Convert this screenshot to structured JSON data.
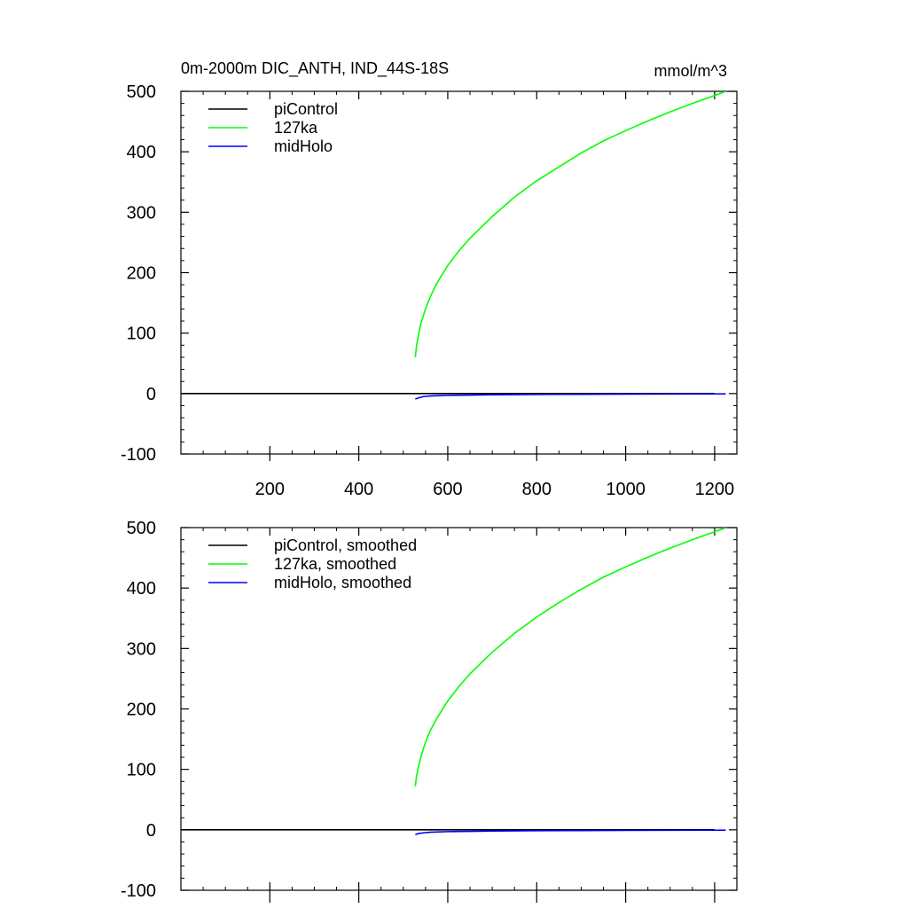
{
  "header": {
    "title": "0m-2000m DIC_ANTH, IND_44S-18S",
    "units": "mmol/m^3"
  },
  "colors": {
    "piControl": "#000000",
    "127ka": "#00ff00",
    "midHolo": "#0000ff"
  },
  "chart_data": [
    {
      "type": "line",
      "title": "0m-2000m DIC_ANTH, IND_44S-18S",
      "units_label": "mmol/m^3",
      "xlabel": "",
      "ylabel": "",
      "xlim": [
        0,
        1250
      ],
      "ylim": [
        -100,
        500
      ],
      "x_ticks": [
        200,
        400,
        600,
        800,
        1000,
        1200
      ],
      "x_tick_labels": [
        "200",
        "400",
        "600",
        "800",
        "1000",
        "1200"
      ],
      "y_ticks": [
        -100,
        0,
        100,
        200,
        300,
        400,
        500
      ],
      "y_tick_labels": [
        "-100",
        "0",
        "100",
        "200",
        "300",
        "400",
        "500"
      ],
      "grid": false,
      "legend_position": "top-left",
      "series": [
        {
          "name": "piControl",
          "color": "#000000",
          "x": [
            0,
            200,
            400,
            600,
            800,
            1000,
            1200
          ],
          "y": [
            0,
            0,
            0,
            0,
            0,
            0,
            0
          ]
        },
        {
          "name": "127ka",
          "color": "#00ff00",
          "x": [
            527,
            530,
            535,
            540,
            550,
            560,
            575,
            600,
            625,
            650,
            700,
            750,
            800,
            850,
            900,
            950,
            1000,
            1050,
            1100,
            1150,
            1200,
            1225
          ],
          "y": [
            60,
            80,
            100,
            117,
            140,
            159,
            182,
            212,
            236,
            257,
            293,
            325,
            352,
            375,
            398,
            418,
            435,
            451,
            466,
            480,
            493,
            500
          ]
        },
        {
          "name": "midHolo",
          "color": "#0000ff",
          "x": [
            527,
            535,
            545,
            560,
            580,
            600,
            650,
            700,
            800,
            900,
            1000,
            1100,
            1200,
            1225
          ],
          "y": [
            -9,
            -7,
            -5,
            -4,
            -3.5,
            -3,
            -2.5,
            -2,
            -1.5,
            -1.2,
            -1,
            -0.8,
            -0.6,
            -0.5
          ]
        }
      ]
    },
    {
      "type": "line",
      "title": "",
      "xlabel": "",
      "ylabel": "",
      "xlim": [
        0,
        1250
      ],
      "ylim": [
        -100,
        500
      ],
      "x_ticks": [
        200,
        400,
        600,
        800,
        1000,
        1200
      ],
      "x_tick_labels": [],
      "y_ticks": [
        -100,
        0,
        100,
        200,
        300,
        400,
        500
      ],
      "y_tick_labels": [
        "-100",
        "0",
        "100",
        "200",
        "300",
        "400",
        "500"
      ],
      "grid": false,
      "legend_position": "top-left",
      "series": [
        {
          "name": "piControl, smoothed",
          "color": "#000000",
          "x": [
            0,
            200,
            400,
            600,
            800,
            1000,
            1200
          ],
          "y": [
            0,
            0,
            0,
            0,
            0,
            0,
            0
          ]
        },
        {
          "name": "127ka, smoothed",
          "color": "#00ff00",
          "x": [
            527,
            530,
            535,
            540,
            550,
            560,
            575,
            600,
            625,
            650,
            700,
            750,
            800,
            850,
            900,
            950,
            1000,
            1050,
            1100,
            1150,
            1200,
            1225
          ],
          "y": [
            72,
            90,
            107,
            122,
            145,
            163,
            184,
            213,
            237,
            258,
            294,
            325,
            352,
            376,
            398,
            418,
            435,
            451,
            466,
            480,
            493,
            500
          ]
        },
        {
          "name": "midHolo, smoothed",
          "color": "#0000ff",
          "x": [
            527,
            535,
            545,
            560,
            580,
            600,
            650,
            700,
            800,
            900,
            1000,
            1100,
            1200,
            1225
          ],
          "y": [
            -8,
            -6,
            -5,
            -4,
            -3.5,
            -3,
            -2.5,
            -2,
            -1.5,
            -1.2,
            -1,
            -0.8,
            -0.6,
            -0.5
          ]
        }
      ]
    }
  ]
}
